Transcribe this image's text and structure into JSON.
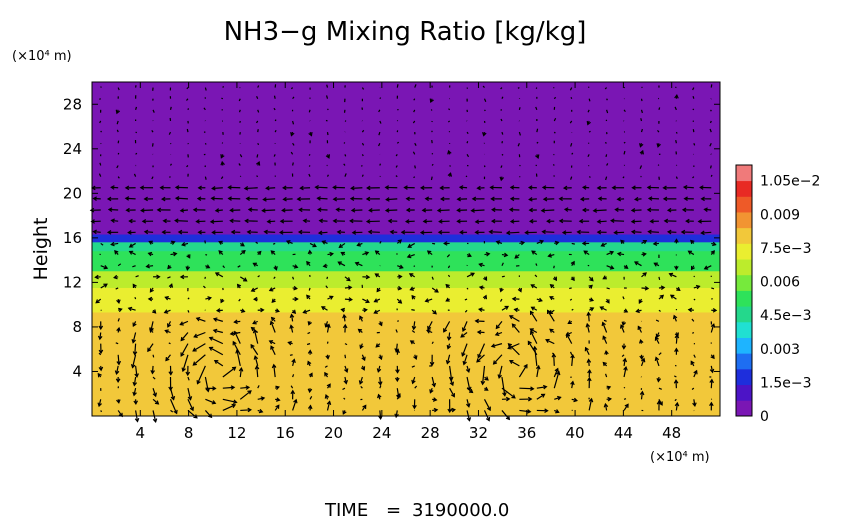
{
  "chart_data": {
    "type": "heatmap",
    "title": "NH3−g Mixing Ratio [kg/kg]",
    "ylabel": "Height",
    "x_unit": "(×10⁴ m)",
    "y_unit": "(×10⁴ m)",
    "xlim": [
      0,
      52
    ],
    "ylim": [
      0,
      30
    ],
    "x_ticks": [
      4,
      8,
      12,
      16,
      20,
      24,
      28,
      32,
      36,
      40,
      44,
      48
    ],
    "y_ticks": [
      4,
      8,
      12,
      16,
      20,
      24,
      28
    ],
    "colorbar": {
      "min": 0,
      "max": 0.0112,
      "tick_values": [
        0,
        0.0015,
        0.003,
        0.0045,
        0.006,
        0.0075,
        0.009,
        0.0105
      ],
      "tick_labels": [
        "0",
        "1.5e−3",
        "0.003",
        "4.5e−3",
        "0.006",
        "7.5e−3",
        "0.009",
        "1.05e−2"
      ],
      "colors": [
        "#7a16b4",
        "#4c14c6",
        "#1e2edc",
        "#1e6ef2",
        "#1eb4ff",
        "#20e0d2",
        "#24d88c",
        "#2ee25a",
        "#76ea3c",
        "#bcec2c",
        "#eaee30",
        "#f2c83a",
        "#f29432",
        "#ee5a28",
        "#e82a24",
        "#f07a7a"
      ]
    },
    "field": {
      "layers": [
        {
          "y_top": 30.0,
          "y_bottom": 16.3,
          "value": 0.0
        },
        {
          "y_top": 16.3,
          "y_bottom": 15.6,
          "value": 0.0018
        },
        {
          "y_top": 15.6,
          "y_bottom": 14.8,
          "value": 0.0042
        },
        {
          "y_top": 14.8,
          "y_bottom": 13.0,
          "value": 0.0055
        },
        {
          "y_top": 13.0,
          "y_bottom": 11.5,
          "value": 0.0064
        },
        {
          "y_top": 11.5,
          "y_bottom": 9.3,
          "value": 0.0071
        },
        {
          "y_top": 9.3,
          "y_bottom": 0.0,
          "value": 0.008
        }
      ]
    },
    "vectors": {
      "columns": 36,
      "rows": 30,
      "circulation_centers": [
        {
          "x": 10.5,
          "y": 4.0,
          "rotation": "clockwise"
        },
        {
          "x": 35.0,
          "y": 4.0,
          "rotation": "clockwise"
        }
      ]
    }
  },
  "footer": {
    "time_label": "TIME",
    "equals": "=",
    "time_value": "3190000.0"
  }
}
